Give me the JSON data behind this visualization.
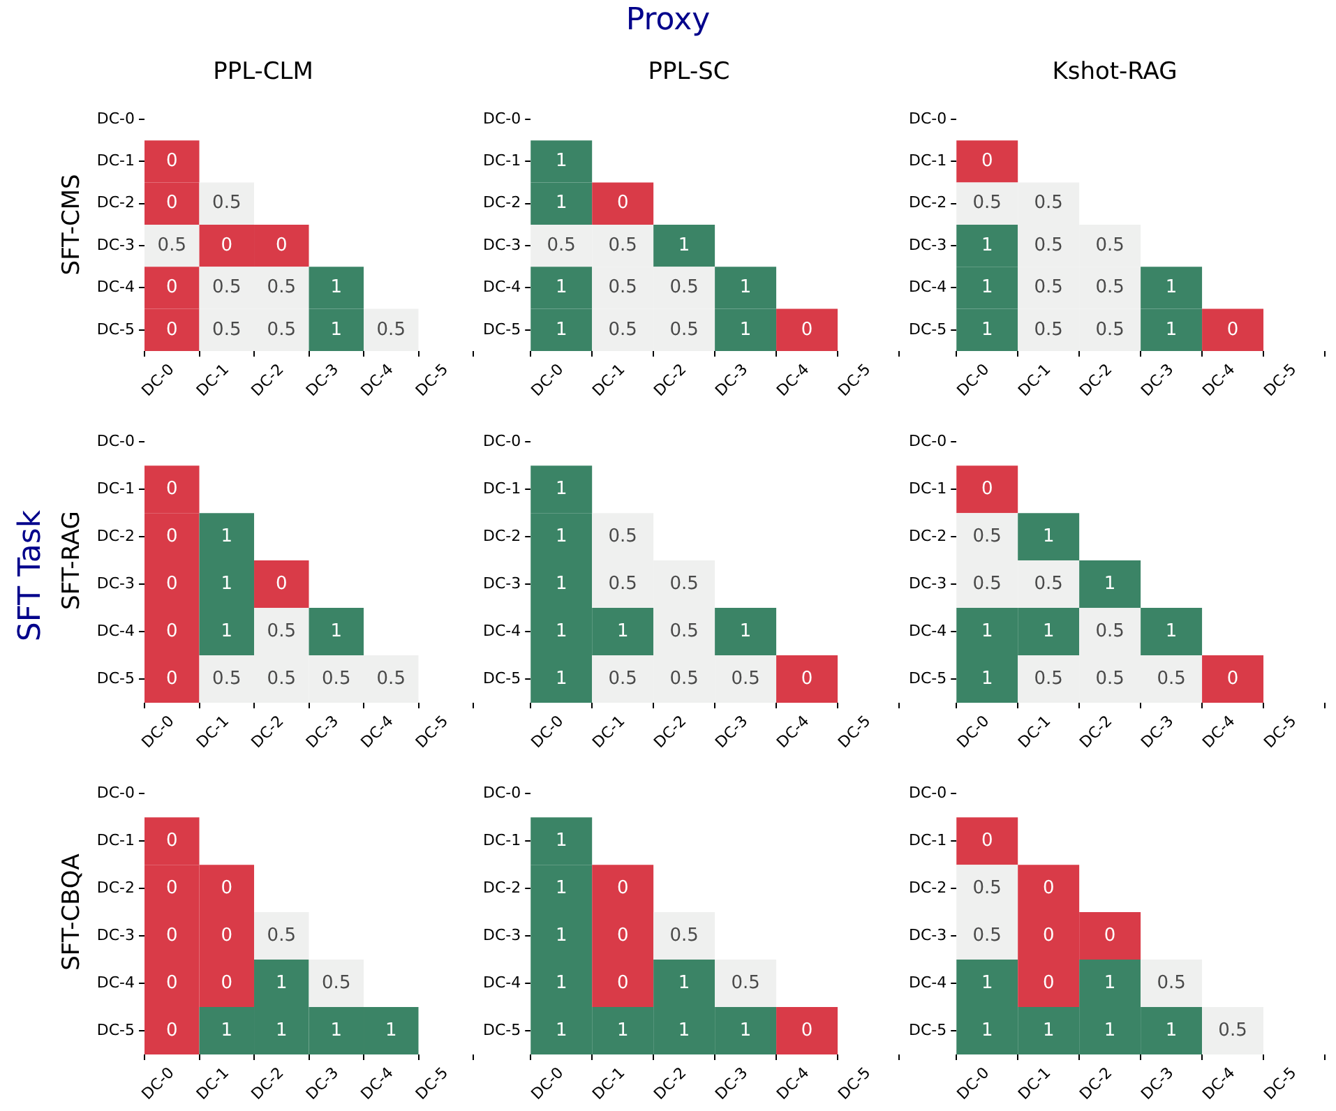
{
  "chart_data": [
    {
      "type": "heatmap",
      "title": "PPL-CLM",
      "ylabel": "SFT-CMS",
      "annotations": [
        "Proxy",
        "SFT Task"
      ],
      "data_labels": true,
      "colors": [
        "#d93b48",
        "#eff0ef",
        "#3b8466"
      ],
      "categories": [
        "DC-0",
        "DC-1",
        "DC-2",
        "DC-3",
        "DC-4",
        "DC-5"
      ],
      "y_categories": [
        "DC-0",
        "DC-1",
        "DC-2",
        "DC-3",
        "DC-4",
        "DC-5"
      ],
      "cells": [
        [
          null,
          null,
          null,
          null,
          null,
          null
        ],
        [
          0,
          null,
          null,
          null,
          null,
          null
        ],
        [
          0,
          0.5,
          null,
          null,
          null,
          null
        ],
        [
          0.5,
          0,
          0,
          null,
          null,
          null
        ],
        [
          0,
          0.5,
          0.5,
          1,
          null,
          null
        ],
        [
          0,
          0.5,
          0.5,
          1,
          0.5,
          null
        ]
      ]
    },
    {
      "type": "heatmap",
      "title": "PPL-SC",
      "data_labels": true,
      "colors": [
        "#d93b48",
        "#eff0ef",
        "#3b8466"
      ],
      "categories": [
        "DC-0",
        "DC-1",
        "DC-2",
        "DC-3",
        "DC-4",
        "DC-5"
      ],
      "y_categories": [
        "DC-0",
        "DC-1",
        "DC-2",
        "DC-3",
        "DC-4",
        "DC-5"
      ],
      "cells": [
        [
          null,
          null,
          null,
          null,
          null,
          null
        ],
        [
          1,
          null,
          null,
          null,
          null,
          null
        ],
        [
          1,
          0,
          null,
          null,
          null,
          null
        ],
        [
          0.5,
          0.5,
          1,
          null,
          null,
          null
        ],
        [
          1,
          0.5,
          0.5,
          1,
          null,
          null
        ],
        [
          1,
          0.5,
          0.5,
          1,
          0,
          null
        ]
      ]
    },
    {
      "type": "heatmap",
      "title": "Kshot-RAG",
      "data_labels": true,
      "colors": [
        "#d93b48",
        "#eff0ef",
        "#3b8466"
      ],
      "categories": [
        "DC-0",
        "DC-1",
        "DC-2",
        "DC-3",
        "DC-4",
        "DC-5"
      ],
      "y_categories": [
        "DC-0",
        "DC-1",
        "DC-2",
        "DC-3",
        "DC-4",
        "DC-5"
      ],
      "cells": [
        [
          null,
          null,
          null,
          null,
          null,
          null
        ],
        [
          0,
          null,
          null,
          null,
          null,
          null
        ],
        [
          0.5,
          0.5,
          null,
          null,
          null,
          null
        ],
        [
          1,
          0.5,
          0.5,
          null,
          null,
          null
        ],
        [
          1,
          0.5,
          0.5,
          1,
          null,
          null
        ],
        [
          1,
          0.5,
          0.5,
          1,
          0,
          null
        ]
      ]
    },
    {
      "type": "heatmap",
      "ylabel": "SFT-RAG",
      "data_labels": true,
      "colors": [
        "#d93b48",
        "#eff0ef",
        "#3b8466"
      ],
      "categories": [
        "DC-0",
        "DC-1",
        "DC-2",
        "DC-3",
        "DC-4",
        "DC-5"
      ],
      "y_categories": [
        "DC-0",
        "DC-1",
        "DC-2",
        "DC-3",
        "DC-4",
        "DC-5"
      ],
      "cells": [
        [
          null,
          null,
          null,
          null,
          null,
          null
        ],
        [
          0,
          null,
          null,
          null,
          null,
          null
        ],
        [
          0,
          1,
          null,
          null,
          null,
          null
        ],
        [
          0,
          1,
          0,
          null,
          null,
          null
        ],
        [
          0,
          1,
          0.5,
          1,
          null,
          null
        ],
        [
          0,
          0.5,
          0.5,
          0.5,
          0.5,
          null
        ]
      ]
    },
    {
      "type": "heatmap",
      "data_labels": true,
      "colors": [
        "#d93b48",
        "#eff0ef",
        "#3b8466"
      ],
      "categories": [
        "DC-0",
        "DC-1",
        "DC-2",
        "DC-3",
        "DC-4",
        "DC-5"
      ],
      "y_categories": [
        "DC-0",
        "DC-1",
        "DC-2",
        "DC-3",
        "DC-4",
        "DC-5"
      ],
      "cells": [
        [
          null,
          null,
          null,
          null,
          null,
          null
        ],
        [
          1,
          null,
          null,
          null,
          null,
          null
        ],
        [
          1,
          0.5,
          null,
          null,
          null,
          null
        ],
        [
          1,
          0.5,
          0.5,
          null,
          null,
          null
        ],
        [
          1,
          1,
          0.5,
          1,
          null,
          null
        ],
        [
          1,
          0.5,
          0.5,
          0.5,
          0,
          null
        ]
      ]
    },
    {
      "type": "heatmap",
      "data_labels": true,
      "colors": [
        "#d93b48",
        "#eff0ef",
        "#3b8466"
      ],
      "categories": [
        "DC-0",
        "DC-1",
        "DC-2",
        "DC-3",
        "DC-4",
        "DC-5"
      ],
      "y_categories": [
        "DC-0",
        "DC-1",
        "DC-2",
        "DC-3",
        "DC-4",
        "DC-5"
      ],
      "cells": [
        [
          null,
          null,
          null,
          null,
          null,
          null
        ],
        [
          0,
          null,
          null,
          null,
          null,
          null
        ],
        [
          0.5,
          1,
          null,
          null,
          null,
          null
        ],
        [
          0.5,
          0.5,
          1,
          null,
          null,
          null
        ],
        [
          1,
          1,
          0.5,
          1,
          null,
          null
        ],
        [
          1,
          0.5,
          0.5,
          0.5,
          0,
          null
        ]
      ]
    },
    {
      "type": "heatmap",
      "ylabel": "SFT-CBQA",
      "data_labels": true,
      "colors": [
        "#d93b48",
        "#eff0ef",
        "#3b8466"
      ],
      "categories": [
        "DC-0",
        "DC-1",
        "DC-2",
        "DC-3",
        "DC-4",
        "DC-5"
      ],
      "y_categories": [
        "DC-0",
        "DC-1",
        "DC-2",
        "DC-3",
        "DC-4",
        "DC-5"
      ],
      "cells": [
        [
          null,
          null,
          null,
          null,
          null,
          null
        ],
        [
          0,
          null,
          null,
          null,
          null,
          null
        ],
        [
          0,
          0,
          null,
          null,
          null,
          null
        ],
        [
          0,
          0,
          0.5,
          null,
          null,
          null
        ],
        [
          0,
          0,
          1,
          0.5,
          null,
          null
        ],
        [
          0,
          1,
          1,
          1,
          1,
          null
        ]
      ]
    },
    {
      "type": "heatmap",
      "data_labels": true,
      "colors": [
        "#d93b48",
        "#eff0ef",
        "#3b8466"
      ],
      "categories": [
        "DC-0",
        "DC-1",
        "DC-2",
        "DC-3",
        "DC-4",
        "DC-5"
      ],
      "y_categories": [
        "DC-0",
        "DC-1",
        "DC-2",
        "DC-3",
        "DC-4",
        "DC-5"
      ],
      "cells": [
        [
          null,
          null,
          null,
          null,
          null,
          null
        ],
        [
          1,
          null,
          null,
          null,
          null,
          null
        ],
        [
          1,
          0,
          null,
          null,
          null,
          null
        ],
        [
          1,
          0,
          0.5,
          null,
          null,
          null
        ],
        [
          1,
          0,
          1,
          0.5,
          null,
          null
        ],
        [
          1,
          1,
          1,
          1,
          0,
          null
        ]
      ]
    },
    {
      "type": "heatmap",
      "data_labels": true,
      "colors": [
        "#d93b48",
        "#eff0ef",
        "#3b8466"
      ],
      "categories": [
        "DC-0",
        "DC-1",
        "DC-2",
        "DC-3",
        "DC-4",
        "DC-5"
      ],
      "y_categories": [
        "DC-0",
        "DC-1",
        "DC-2",
        "DC-3",
        "DC-4",
        "DC-5"
      ],
      "cells": [
        [
          null,
          null,
          null,
          null,
          null,
          null
        ],
        [
          0,
          null,
          null,
          null,
          null,
          null
        ],
        [
          0.5,
          0,
          null,
          null,
          null,
          null
        ],
        [
          0.5,
          0,
          0,
          null,
          null,
          null
        ],
        [
          1,
          0,
          1,
          0.5,
          null,
          null
        ],
        [
          1,
          1,
          1,
          1,
          0.5,
          null
        ]
      ]
    }
  ]
}
